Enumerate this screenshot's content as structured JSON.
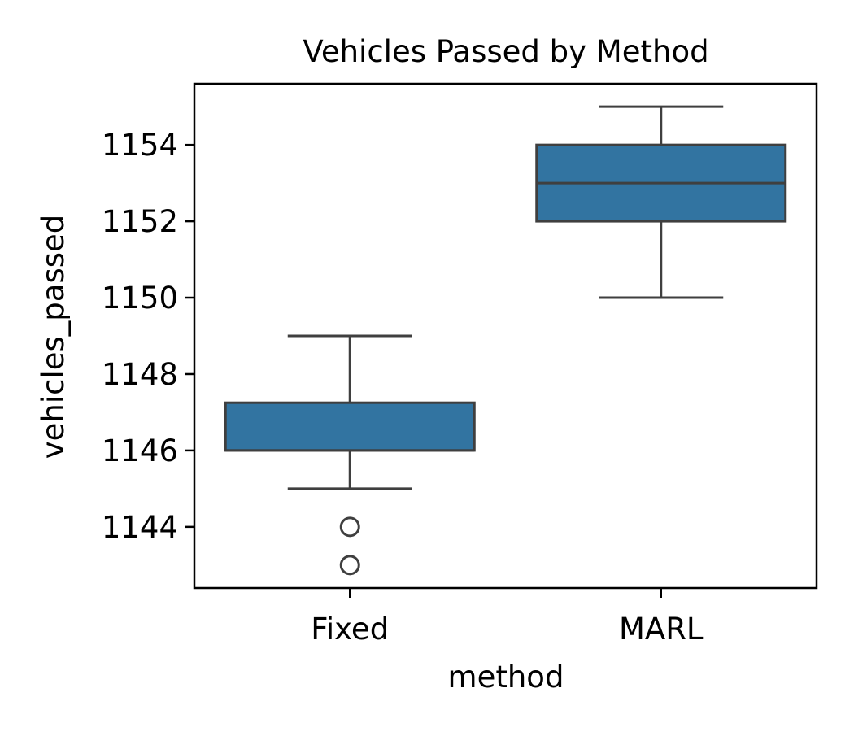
{
  "chart_data": {
    "type": "box",
    "title": "Vehicles Passed by Method",
    "xlabel": "method",
    "ylabel": "vehicles_passed",
    "categories": [
      "Fixed",
      "MARL"
    ],
    "ylim": [
      1142.4,
      1155.6
    ],
    "yticks": [
      1144,
      1146,
      1148,
      1150,
      1152,
      1154
    ],
    "grid": false,
    "box_color": "#3274a1",
    "line_color": "#3f3f3f",
    "boxes": [
      {
        "category": "Fixed",
        "whisker_low": 1145,
        "q1": 1146,
        "median": 1146,
        "q3": 1147.25,
        "whisker_high": 1149,
        "outliers": [
          1144,
          1143
        ]
      },
      {
        "category": "MARL",
        "whisker_low": 1150,
        "q1": 1152,
        "median": 1153,
        "q3": 1154,
        "whisker_high": 1155,
        "outliers": []
      }
    ]
  }
}
